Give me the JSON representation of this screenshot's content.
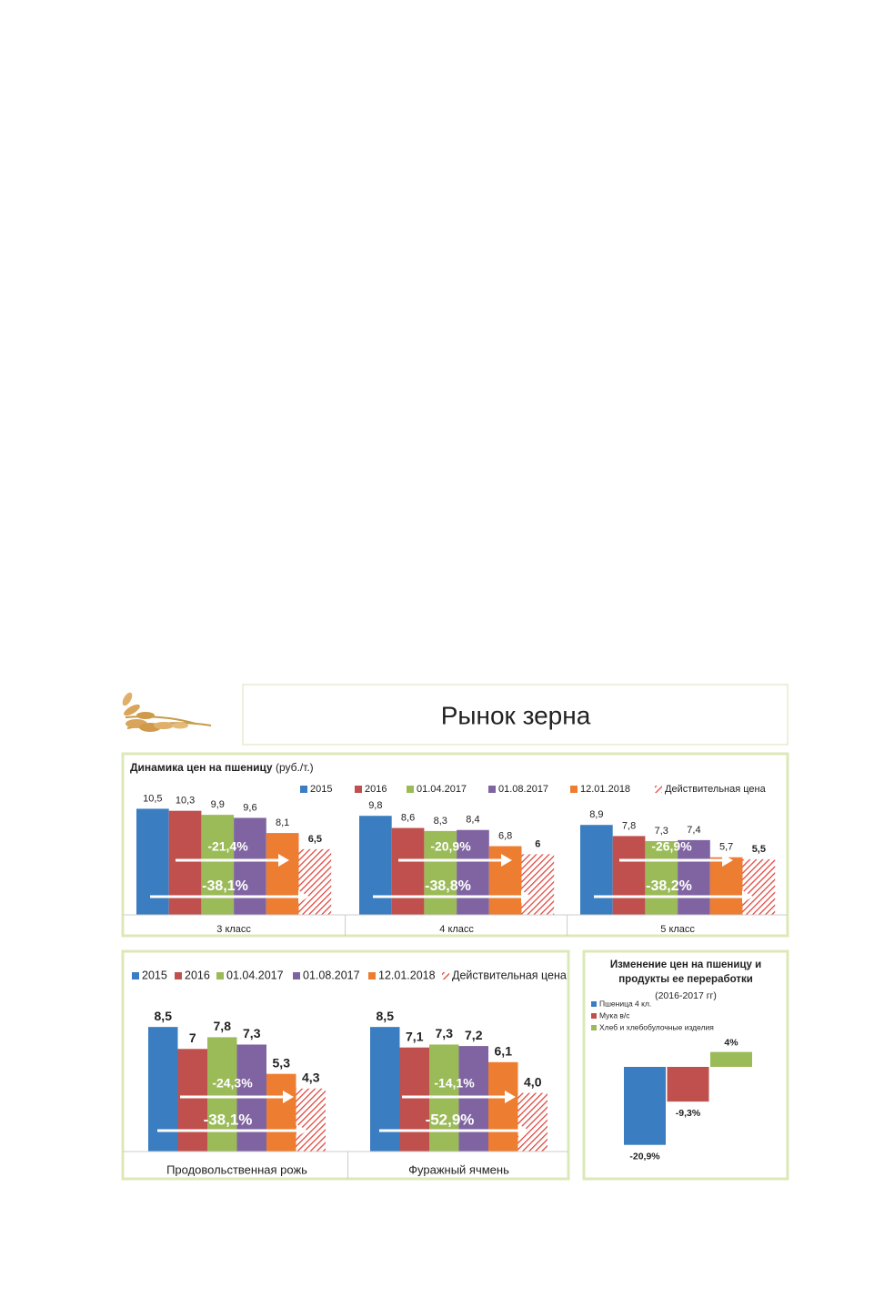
{
  "header": {
    "title": "Рынок зерна"
  },
  "chart_data": [
    {
      "type": "bar",
      "title": "Динамика цен на пшеницу",
      "subtitle": "(руб./т.)",
      "categories": [
        "3 класс",
        "4 класс",
        "5 класс"
      ],
      "series": [
        {
          "name": "2015",
          "color": "#3a7dc1",
          "values": [
            10.5,
            9.8,
            8.9
          ],
          "value_labels": [
            "10,5",
            "9,8",
            "8,9"
          ]
        },
        {
          "name": "2016",
          "color": "#c0504d",
          "values": [
            10.3,
            8.6,
            7.8
          ],
          "value_labels": [
            "10,3",
            "8,6",
            "7,8"
          ]
        },
        {
          "name": "01.04.2017",
          "color": "#9bbb59",
          "values": [
            9.9,
            8.3,
            7.3
          ],
          "value_labels": [
            "9,9",
            "8,3",
            "7,3"
          ]
        },
        {
          "name": "01.08.2017",
          "color": "#8064a2",
          "values": [
            9.6,
            8.4,
            7.4
          ],
          "value_labels": [
            "9,6",
            "8,4",
            "7,4"
          ]
        },
        {
          "name": "12.01.2018",
          "color": "#ed7d31",
          "values": [
            8.1,
            6.8,
            5.7
          ],
          "value_labels": [
            "8,1",
            "6,8",
            "5,7"
          ]
        },
        {
          "name": "Действительная цена",
          "color": "#e0423a",
          "hatched": true,
          "values": [
            6.5,
            6,
            5.5
          ],
          "value_labels": [
            "6,5",
            "6",
            "5,5"
          ]
        }
      ],
      "short_changes": [
        "-21,4%",
        "-20,9%",
        "-26,9%"
      ],
      "long_changes": [
        "-38,1%",
        "-38,8%",
        "-38,2%"
      ]
    },
    {
      "type": "bar",
      "categories": [
        "Продовольственная рожь",
        "Фуражный ячмень"
      ],
      "series": [
        {
          "name": "2015",
          "color": "#3a7dc1",
          "values": [
            8.5,
            8.5
          ],
          "value_labels": [
            "8,5",
            "8,5"
          ]
        },
        {
          "name": "2016",
          "color": "#c0504d",
          "values": [
            7,
            7.1
          ],
          "value_labels": [
            "7",
            "7,1"
          ]
        },
        {
          "name": "01.04.2017",
          "color": "#9bbb59",
          "values": [
            7.8,
            7.3
          ],
          "value_labels": [
            "7,8",
            "7,3"
          ]
        },
        {
          "name": "01.08.2017",
          "color": "#8064a2",
          "values": [
            7.3,
            7.2
          ],
          "value_labels": [
            "7,3",
            "7,2"
          ]
        },
        {
          "name": "12.01.2018",
          "color": "#ed7d31",
          "values": [
            5.3,
            6.1
          ],
          "value_labels": [
            "5,3",
            "6,1"
          ]
        },
        {
          "name": "Действительная цена",
          "color": "#e0423a",
          "hatched": true,
          "values": [
            4.3,
            4.0
          ],
          "value_labels": [
            "4,3",
            "4,0"
          ]
        }
      ],
      "short_changes": [
        "-24,3%",
        "-14,1%"
      ],
      "long_changes": [
        "-38,1%",
        "-52,9%"
      ]
    },
    {
      "type": "bar",
      "title": "Изменение цен на пшеницу и продукты ее переработки",
      "subtitle": "(2016-2017 гг)",
      "series": [
        {
          "name": "Пшеница 4 кл.",
          "color": "#3a7dc1",
          "values": [
            -20.9
          ],
          "value_labels": [
            "-20,9%"
          ]
        },
        {
          "name": "Мука в/с",
          "color": "#c0504d",
          "values": [
            -9.3
          ],
          "value_labels": [
            "-9,3%"
          ]
        },
        {
          "name": "Хлеб и хлебобулочные изделия",
          "color": "#9bbb59",
          "values": [
            4
          ],
          "value_labels": [
            "4%"
          ]
        }
      ]
    }
  ]
}
